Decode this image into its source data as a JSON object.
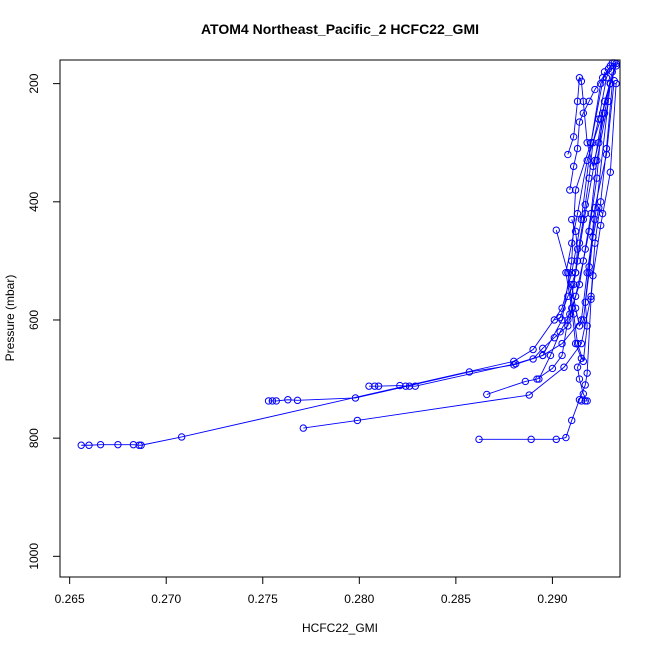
{
  "chart_data": {
    "type": "line",
    "title": "ATOM4 Northeast_Pacific_2 HCFC22_GMI",
    "xlabel": "HCFC22_GMI",
    "ylabel": "Pressure (mbar)",
    "xlim": [
      0.2645,
      0.2935
    ],
    "ylim": [
      1035,
      160
    ],
    "y_reversed": true,
    "xticks": [
      0.265,
      0.27,
      0.275,
      0.28,
      0.285,
      0.29
    ],
    "xtick_labels": [
      "0.265",
      "0.270",
      "0.275",
      "0.280",
      "0.285",
      "0.290"
    ],
    "yticks": [
      200,
      400,
      600,
      800,
      1000
    ],
    "ytick_labels": [
      "200",
      "400",
      "600",
      "800",
      "1000"
    ],
    "grid": false,
    "legend": "none",
    "color": "#0000ff",
    "marker": "open-circle",
    "series": [
      {
        "points": [
          [
            0.2656,
            812
          ],
          [
            0.266,
            812
          ],
          [
            0.2666,
            811
          ],
          [
            0.2675,
            811
          ],
          [
            0.2683,
            811
          ],
          [
            0.2686,
            812
          ],
          [
            0.2687,
            812
          ],
          [
            0.2708,
            798
          ],
          [
            0.288,
            670
          ],
          [
            0.289,
            650
          ],
          [
            0.2905,
            580
          ],
          [
            0.291,
            520
          ],
          [
            0.2915,
            430
          ],
          [
            0.292,
            300
          ],
          [
            0.2925,
            200
          ],
          [
            0.293,
            170
          ]
        ]
      },
      {
        "points": [
          [
            0.2753,
            737
          ],
          [
            0.2755,
            737
          ],
          [
            0.2757,
            737
          ],
          [
            0.2763,
            735
          ],
          [
            0.2768,
            736
          ],
          [
            0.2798,
            732
          ],
          [
            0.2857,
            688
          ],
          [
            0.288,
            676
          ],
          [
            0.2895,
            660
          ],
          [
            0.2905,
            640
          ],
          [
            0.2915,
            600
          ],
          [
            0.2918,
            520
          ],
          [
            0.2922,
            430
          ],
          [
            0.293,
            200
          ],
          [
            0.2933,
            166
          ]
        ]
      },
      {
        "points": [
          [
            0.2805,
            712
          ],
          [
            0.2808,
            712
          ],
          [
            0.281,
            712
          ],
          [
            0.2821,
            711
          ],
          [
            0.2824,
            712
          ],
          [
            0.2826,
            712
          ],
          [
            0.2829,
            712
          ],
          [
            0.2881,
            674
          ],
          [
            0.2895,
            660
          ],
          [
            0.2905,
            600
          ],
          [
            0.291,
            500
          ],
          [
            0.2912,
            380
          ],
          [
            0.292,
            300
          ],
          [
            0.2927,
            180
          ]
        ]
      },
      {
        "points": [
          [
            0.2771,
            783
          ],
          [
            0.2799,
            770
          ],
          [
            0.2888,
            727
          ],
          [
            0.2906,
            680
          ],
          [
            0.2915,
            640
          ],
          [
            0.292,
            560
          ],
          [
            0.2922,
            470
          ],
          [
            0.2925,
            400
          ],
          [
            0.2928,
            310
          ],
          [
            0.2932,
            165
          ]
        ]
      },
      {
        "points": [
          [
            0.2862,
            802
          ],
          [
            0.2889,
            802
          ],
          [
            0.2902,
            802
          ],
          [
            0.2907,
            799
          ],
          [
            0.291,
            770
          ],
          [
            0.2914,
            735
          ],
          [
            0.2917,
            710
          ],
          [
            0.2918,
            690
          ],
          [
            0.292,
            565
          ],
          [
            0.2921,
            525
          ],
          [
            0.2925,
            440
          ],
          [
            0.293,
            350
          ],
          [
            0.2933,
            200
          ]
        ]
      },
      {
        "points": [
          [
            0.2866,
            726
          ],
          [
            0.2886,
            704
          ],
          [
            0.2892,
            700
          ],
          [
            0.29,
            682
          ],
          [
            0.2905,
            660
          ],
          [
            0.2908,
            600
          ],
          [
            0.2912,
            520
          ],
          [
            0.2917,
            420
          ],
          [
            0.2922,
            330
          ],
          [
            0.2927,
            230
          ],
          [
            0.2933,
            170
          ]
        ]
      },
      {
        "points": [
          [
            0.289,
            666
          ],
          [
            0.2895,
            648
          ],
          [
            0.2901,
            630
          ],
          [
            0.2908,
            610
          ],
          [
            0.2912,
            560
          ],
          [
            0.2916,
            500
          ],
          [
            0.2919,
            450
          ],
          [
            0.2923,
            360
          ],
          [
            0.2926,
            250
          ],
          [
            0.2931,
            180
          ]
        ]
      },
      {
        "points": [
          [
            0.2915,
            737
          ],
          [
            0.2917,
            737
          ],
          [
            0.2918,
            737
          ],
          [
            0.2916,
            725
          ],
          [
            0.2914,
            700
          ],
          [
            0.2913,
            680
          ],
          [
            0.2915,
            665
          ],
          [
            0.2912,
            640
          ],
          [
            0.291,
            580
          ],
          [
            0.2907,
            520
          ],
          [
            0.291,
            470
          ],
          [
            0.2913,
            420
          ],
          [
            0.2918,
            330
          ],
          [
            0.2925,
            260
          ],
          [
            0.293,
            200
          ]
        ]
      },
      {
        "points": [
          [
            0.2901,
            600
          ],
          [
            0.2904,
            596
          ],
          [
            0.2908,
            560
          ],
          [
            0.2911,
            540
          ],
          [
            0.2913,
            500
          ],
          [
            0.2914,
            470
          ],
          [
            0.2916,
            430
          ],
          [
            0.2917,
            405
          ],
          [
            0.2919,
            360
          ],
          [
            0.2921,
            300
          ],
          [
            0.2924,
            260
          ],
          [
            0.2928,
            190
          ],
          [
            0.2931,
            165
          ]
        ]
      },
      {
        "points": [
          [
            0.2902,
            448
          ],
          [
            0.2908,
            520
          ],
          [
            0.2911,
            590
          ],
          [
            0.2913,
            640
          ],
          [
            0.2916,
            670
          ],
          [
            0.2918,
            610
          ],
          [
            0.2917,
            570
          ],
          [
            0.2919,
            510
          ],
          [
            0.2922,
            410
          ],
          [
            0.2928,
            320
          ],
          [
            0.2932,
            195
          ]
        ]
      },
      {
        "points": [
          [
            0.2908,
            320
          ],
          [
            0.2911,
            290
          ],
          [
            0.2913,
            230
          ],
          [
            0.2914,
            190
          ],
          [
            0.2915,
            196
          ],
          [
            0.2916,
            230
          ],
          [
            0.2918,
            300
          ],
          [
            0.2921,
            340
          ],
          [
            0.2924,
            300
          ],
          [
            0.2927,
            250
          ],
          [
            0.293,
            200
          ]
        ]
      },
      {
        "points": [
          [
            0.291,
            430
          ],
          [
            0.2912,
            450
          ],
          [
            0.2913,
            480
          ],
          [
            0.2912,
            520
          ],
          [
            0.291,
            540
          ],
          [
            0.2912,
            580
          ],
          [
            0.2914,
            610
          ],
          [
            0.2916,
            600
          ],
          [
            0.2919,
            520
          ],
          [
            0.2921,
            460
          ],
          [
            0.2924,
            410
          ],
          [
            0.2926,
            420
          ]
        ]
      },
      {
        "points": [
          [
            0.2909,
            380
          ],
          [
            0.2911,
            340
          ],
          [
            0.2913,
            310
          ],
          [
            0.2914,
            265
          ],
          [
            0.2916,
            250
          ],
          [
            0.2919,
            230
          ],
          [
            0.2922,
            210
          ],
          [
            0.2926,
            190
          ],
          [
            0.2929,
            175
          ]
        ]
      },
      {
        "points": [
          [
            0.2893,
            700
          ],
          [
            0.2899,
            660
          ],
          [
            0.2904,
            620
          ],
          [
            0.2909,
            590
          ],
          [
            0.2914,
            540
          ],
          [
            0.2917,
            480
          ],
          [
            0.292,
            420
          ],
          [
            0.2923,
            330
          ],
          [
            0.2929,
            230
          ]
        ]
      }
    ]
  }
}
